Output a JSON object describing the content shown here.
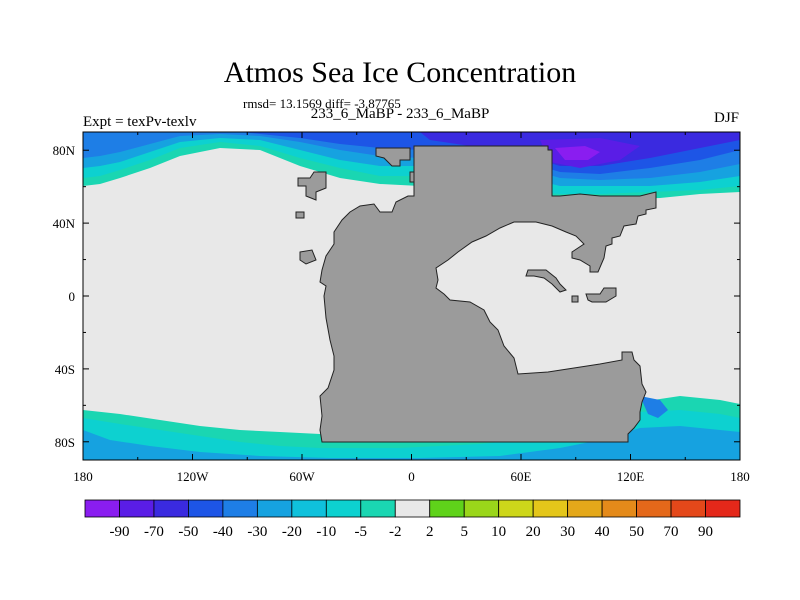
{
  "title": "Atmos Sea Ice Concentration",
  "subtitle": "rmsd= 13.1569 diff= -3.87765",
  "left_label": "Expt = texPv-texlv",
  "center_label": "233_6_MaBP - 233_6_MaBP",
  "right_label": "DJF",
  "axes": {
    "x_ticks": [
      {
        "lon": -180,
        "label": "180"
      },
      {
        "lon": -120,
        "label": "120W"
      },
      {
        "lon": -60,
        "label": "60W"
      },
      {
        "lon": 0,
        "label": "0"
      },
      {
        "lon": 60,
        "label": "60E"
      },
      {
        "lon": 120,
        "label": "120E"
      },
      {
        "lon": 180,
        "label": "180"
      }
    ],
    "y_ticks": [
      {
        "lat": 80,
        "label": "80N"
      },
      {
        "lat": 40,
        "label": "40N"
      },
      {
        "lat": 0,
        "label": "0"
      },
      {
        "lat": -40,
        "label": "40S"
      },
      {
        "lat": -80,
        "label": "80S"
      }
    ]
  },
  "colorbar": {
    "colors": [
      "#8a1df0",
      "#5a1de6",
      "#3a2ae0",
      "#1d55e6",
      "#1e7ee6",
      "#16a2e0",
      "#0fc1dc",
      "#0dd1d0",
      "#1ad6b2",
      "#e8e8e8",
      "#5fd21a",
      "#9ad61a",
      "#cdd61a",
      "#e4c61a",
      "#e4a81a",
      "#e48a1a",
      "#e4681a",
      "#e4481a",
      "#e4281a"
    ],
    "labels": [
      "-90",
      "-70",
      "-50",
      "-40",
      "-30",
      "-20",
      "-10",
      "-5",
      "-2",
      "2",
      "5",
      "10",
      "20",
      "30",
      "40",
      "50",
      "70",
      "90"
    ]
  },
  "colors": {
    "land": "#9b9b9b",
    "no_change": "#e8e8e8",
    "accent_purple": "#5a1de6"
  }
}
